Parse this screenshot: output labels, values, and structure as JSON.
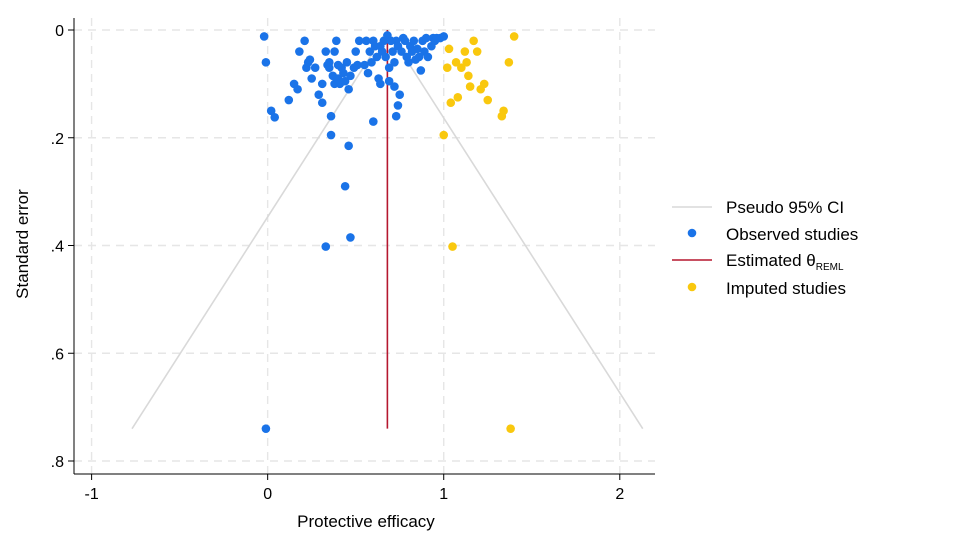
{
  "chart_data": {
    "type": "scatter",
    "xlabel": "Protective efficacy",
    "ylabel": "Standard error",
    "xlim": [
      -1.1,
      2.2
    ],
    "ylim": [
      0,
      0.8
    ],
    "y_reversed": true,
    "grid": true,
    "legend_position": "right",
    "x_ticks": [
      {
        "value": -1,
        "label": "-1"
      },
      {
        "value": 0,
        "label": "0"
      },
      {
        "value": 1,
        "label": "1"
      },
      {
        "value": 2,
        "label": "2"
      }
    ],
    "y_ticks": [
      {
        "value": 0,
        "label": "0"
      },
      {
        "value": 0.2,
        "label": ".2"
      },
      {
        "value": 0.4,
        "label": ".4"
      },
      {
        "value": 0.6,
        "label": ".6"
      },
      {
        "value": 0.8,
        "label": ".8"
      }
    ],
    "estimate": 0.68,
    "ci_se_max": 0.74,
    "ci_multiplier": 1.96,
    "colors": {
      "observed": "#1a73e8",
      "imputed": "#f9c80e",
      "estimate": "#b5172f",
      "ci": "#d9d9d9"
    },
    "legend": {
      "ci": "Pseudo 95% CI",
      "observed": "Observed studies",
      "estimate_prefix": "Estimated θ",
      "estimate_sub": "REML",
      "imputed": "Imputed studies"
    },
    "observed": [
      [
        -0.02,
        0.012
      ],
      [
        -0.01,
        0.06
      ],
      [
        0.02,
        0.15
      ],
      [
        0.04,
        0.162
      ],
      [
        0.12,
        0.13
      ],
      [
        0.15,
        0.1
      ],
      [
        0.17,
        0.11
      ],
      [
        0.18,
        0.04
      ],
      [
        0.21,
        0.02
      ],
      [
        0.22,
        0.07
      ],
      [
        0.23,
        0.06
      ],
      [
        0.24,
        0.055
      ],
      [
        0.25,
        0.09
      ],
      [
        0.27,
        0.07
      ],
      [
        0.29,
        0.12
      ],
      [
        0.31,
        0.135
      ],
      [
        0.33,
        0.04
      ],
      [
        0.34,
        0.065
      ],
      [
        0.35,
        0.07
      ],
      [
        0.36,
        0.16
      ],
      [
        0.37,
        0.085
      ],
      [
        0.38,
        0.04
      ],
      [
        0.38,
        0.1
      ],
      [
        0.39,
        0.02
      ],
      [
        0.4,
        0.065
      ],
      [
        0.4,
        0.09
      ],
      [
        0.41,
        0.1
      ],
      [
        0.42,
        0.07
      ],
      [
        0.43,
        0.08
      ],
      [
        0.44,
        0.095
      ],
      [
        0.45,
        0.06
      ],
      [
        0.46,
        0.11
      ],
      [
        0.47,
        0.085
      ],
      [
        0.49,
        0.07
      ],
      [
        0.5,
        0.04
      ],
      [
        0.51,
        0.065
      ],
      [
        0.52,
        0.02
      ],
      [
        0.55,
        0.065
      ],
      [
        0.56,
        0.02
      ],
      [
        0.58,
        0.04
      ],
      [
        0.59,
        0.06
      ],
      [
        0.6,
        0.02
      ],
      [
        0.61,
        0.03
      ],
      [
        0.62,
        0.05
      ],
      [
        0.63,
        0.09
      ],
      [
        0.64,
        0.1
      ],
      [
        0.65,
        0.04
      ],
      [
        0.66,
        0.02
      ],
      [
        0.67,
        0.05
      ],
      [
        0.68,
        0.01
      ],
      [
        0.69,
        0.07
      ],
      [
        0.7,
        0.02
      ],
      [
        0.71,
        0.04
      ],
      [
        0.72,
        0.06
      ],
      [
        0.73,
        0.02
      ],
      [
        0.74,
        0.03
      ],
      [
        0.75,
        0.12
      ],
      [
        0.76,
        0.04
      ],
      [
        0.77,
        0.015
      ],
      [
        0.78,
        0.02
      ],
      [
        0.79,
        0.05
      ],
      [
        0.8,
        0.06
      ],
      [
        0.81,
        0.03
      ],
      [
        0.82,
        0.04
      ],
      [
        0.83,
        0.02
      ],
      [
        0.85,
        0.035
      ],
      [
        0.86,
        0.05
      ],
      [
        0.87,
        0.075
      ],
      [
        0.88,
        0.02
      ],
      [
        0.89,
        0.04
      ],
      [
        0.9,
        0.015
      ],
      [
        0.91,
        0.05
      ],
      [
        0.93,
        0.03
      ],
      [
        0.94,
        0.015
      ],
      [
        0.95,
        0.02
      ],
      [
        0.96,
        0.015
      ],
      [
        0.98,
        0.015
      ],
      [
        1.0,
        0.012
      ],
      [
        0.31,
        0.1
      ],
      [
        0.36,
        0.195
      ],
      [
        0.44,
        0.29
      ],
      [
        0.46,
        0.215
      ],
      [
        0.47,
        0.385
      ],
      [
        0.33,
        0.402
      ],
      [
        0.6,
        0.17
      ],
      [
        0.73,
        0.16
      ],
      [
        0.74,
        0.14
      ],
      [
        -0.01,
        0.74
      ],
      [
        0.35,
        0.06
      ],
      [
        0.57,
        0.08
      ],
      [
        0.64,
        0.03
      ],
      [
        0.69,
        0.095
      ],
      [
        0.72,
        0.105
      ],
      [
        0.84,
        0.055
      ]
    ],
    "imputed": [
      [
        1.0,
        0.195
      ],
      [
        1.02,
        0.07
      ],
      [
        1.03,
        0.035
      ],
      [
        1.04,
        0.135
      ],
      [
        1.05,
        0.402
      ],
      [
        1.07,
        0.06
      ],
      [
        1.08,
        0.125
      ],
      [
        1.1,
        0.07
      ],
      [
        1.12,
        0.04
      ],
      [
        1.13,
        0.06
      ],
      [
        1.14,
        0.085
      ],
      [
        1.15,
        0.105
      ],
      [
        1.17,
        0.02
      ],
      [
        1.19,
        0.04
      ],
      [
        1.21,
        0.11
      ],
      [
        1.23,
        0.1
      ],
      [
        1.25,
        0.13
      ],
      [
        1.33,
        0.16
      ],
      [
        1.34,
        0.15
      ],
      [
        1.37,
        0.06
      ],
      [
        1.38,
        0.74
      ],
      [
        1.4,
        0.012
      ]
    ]
  }
}
